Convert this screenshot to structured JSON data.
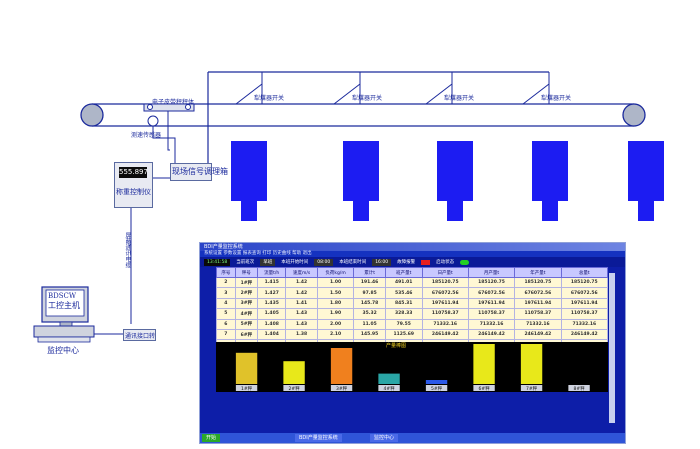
{
  "labels": {
    "sampler": "电子皮带秤秤体",
    "speed_sensor": "测速传感器",
    "signal_box": "现场信号调理箱",
    "weigher_display": "555.897",
    "weigher_label": "称重控制仪",
    "comm_cable": "屏蔽通讯电缆",
    "pc_screen_line1": "BDSCW",
    "pc_screen_line2": "工控主机",
    "monitor_center": "监控中心",
    "comm_module": "通讯接口转"
  },
  "plow_labels": [
    "犁煤器开关",
    "犁煤器开关",
    "犁煤器开关",
    "犁煤器开关"
  ],
  "software": {
    "title": "BDI产量监控系统",
    "menu": "系统设置  参数设置  报表查询  打印  历史曲线  帮助  退出",
    "status": {
      "clock": "13:41:58",
      "current_group": "当前班次",
      "group_val": "早班",
      "start_time_label": "本班开始时间",
      "start_time": "08:00",
      "end_time_label": "本班结束时间",
      "end_time": "16:00",
      "alarm_label": "故障报警",
      "start_label": "启动状态"
    },
    "columns": [
      "序号",
      "秤号",
      "流量t/h",
      "速度m/s",
      "负荷kg/m",
      "累计t",
      "班产量t",
      "日产量t",
      "月产量t",
      "年产量t",
      "总量t"
    ],
    "rows": [
      [
        "2",
        "1#秤",
        "1.415",
        "1.42",
        "1.00",
        "191.46",
        "491.01",
        "185120.75",
        "185120.75",
        "185120.75",
        "185120.75"
      ],
      [
        "3",
        "2#秤",
        "1.427",
        "1.42",
        "1.50",
        "97.85",
        "535.46",
        "676072.56",
        "676072.56",
        "676072.56",
        "676072.56"
      ],
      [
        "4",
        "3#秤",
        "1.435",
        "1.41",
        "1.80",
        "145.78",
        "845.31",
        "197611.94",
        "197611.94",
        "197611.94",
        "197611.94"
      ],
      [
        "5",
        "4#秤",
        "1.405",
        "1.43",
        "1.90",
        "35.32",
        "328.33",
        "110758.37",
        "110758.37",
        "110758.37",
        "110758.37"
      ],
      [
        "6",
        "5#秤",
        "1.408",
        "1.43",
        "2.00",
        "11.05",
        "79.55",
        "71332.16",
        "71332.16",
        "71332.16",
        "71332.16"
      ],
      [
        "7",
        "6#秤",
        "1.404",
        "1.38",
        "2.10",
        "145.95",
        "1125.69",
        "246149.42",
        "246149.42",
        "246149.42",
        "246149.42"
      ],
      [
        "8",
        "7#秤",
        "1.407",
        "1.41",
        "2.30",
        "186.45",
        "1163.84",
        "261582.84",
        "261582.84",
        "261582.84",
        "261582.84"
      ]
    ],
    "chart_title": "产量棒图",
    "taskbar": [
      "开始",
      "BDI产量监控系统",
      "监控中心"
    ]
  },
  "chart_data": {
    "type": "bar",
    "categories": [
      "1#秤",
      "2#秤",
      "3#秤",
      "4#秤",
      "5#秤",
      "6#秤",
      "7#秤",
      "8#秤"
    ],
    "values": [
      0.78,
      0.57,
      0.9,
      0.26,
      0.1,
      1.0,
      1.0,
      0.0
    ],
    "colors": [
      "#e0c22a",
      "#e8e81a",
      "#f0801e",
      "#2aa6a6",
      "#2a58e8",
      "#e8e81a",
      "#e8e81a",
      "#888888"
    ],
    "ylim": [
      0,
      1
    ]
  }
}
